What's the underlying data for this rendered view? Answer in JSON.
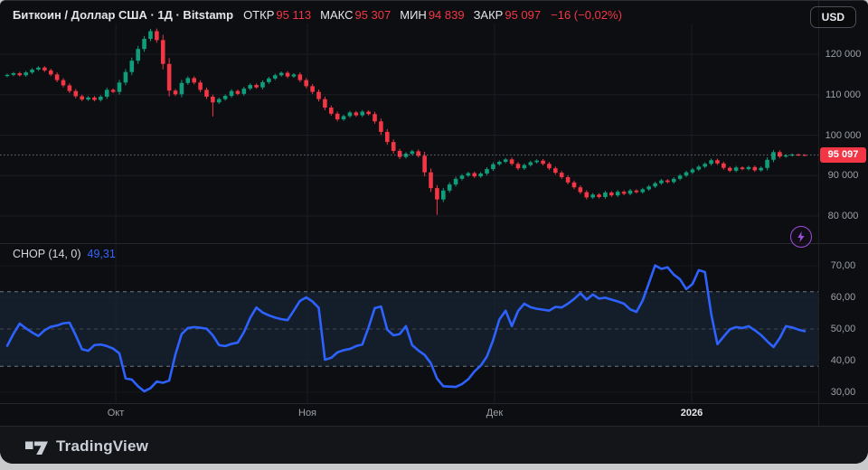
{
  "header": {
    "symbol_title": "Биткоин / Доллар США · 1Д · Bitstamp",
    "ohlc": [
      {
        "label": "ОТКР",
        "value": "95 113"
      },
      {
        "label": "МАКС",
        "value": "95 307"
      },
      {
        "label": "МИН",
        "value": "94 839"
      },
      {
        "label": "ЗАКР",
        "value": "95 097"
      }
    ],
    "change": "−16 (−0,02%)",
    "currency_button": "USD"
  },
  "indicator": {
    "label": "CHOP (14, 0)",
    "value": "49,31"
  },
  "branding": {
    "logo_text": "TradingView"
  },
  "colors": {
    "up": "#0f9e7b",
    "down": "#f23645",
    "chop_line": "#2d62ff",
    "badge_bg": "#f23645",
    "accent_purple": "#9d4edd",
    "band_fill": "#182634"
  },
  "chart_data": [
    {
      "type": "candlestick",
      "name": "Биткоин / Доллар США · 1Д · Bitstamp",
      "unit": "thousand USD",
      "first_open": 114.6,
      "closes": [
        114.9,
        115.3,
        114.8,
        115.5,
        116.2,
        116.7,
        116.0,
        115.0,
        113.6,
        112.3,
        110.9,
        109.6,
        108.8,
        109.3,
        108.7,
        109.5,
        111.2,
        110.7,
        113.0,
        115.6,
        118.4,
        121.3,
        123.8,
        125.7,
        123.5,
        117.6,
        111.0,
        110.1,
        112.9,
        114.1,
        113.0,
        111.2,
        109.5,
        108.1,
        108.9,
        109.7,
        110.9,
        110.2,
        111.5,
        112.4,
        111.8,
        113.1,
        114.0,
        114.8,
        115.4,
        114.5,
        115.0,
        113.6,
        112.1,
        110.7,
        108.9,
        106.8,
        105.3,
        103.9,
        104.7,
        105.6,
        104.9,
        105.8,
        105.2,
        103.4,
        100.8,
        98.3,
        96.1,
        94.6,
        95.4,
        96.0,
        94.9,
        90.8,
        86.9,
        84.1,
        86.3,
        87.8,
        89.2,
        90.0,
        90.6,
        89.8,
        90.5,
        91.6,
        92.8,
        93.4,
        94.0,
        92.9,
        91.8,
        92.6,
        93.3,
        93.7,
        92.9,
        91.8,
        90.7,
        89.6,
        88.3,
        87.1,
        85.9,
        84.6,
        85.3,
        84.7,
        85.8,
        85.1,
        86.0,
        85.5,
        86.3,
        85.9,
        86.6,
        87.3,
        88.1,
        88.8,
        88.4,
        89.2,
        90.0,
        90.8,
        91.5,
        92.2,
        92.9,
        93.8,
        93.0,
        91.9,
        91.2,
        92.0,
        91.6,
        92.1,
        91.3,
        91.9,
        93.9,
        95.8,
        94.7,
        95.0,
        95.2,
        95.1,
        95.097
      ],
      "wick_overrides": {
        "33": {
          "low": 104.6
        },
        "69": {
          "low": 80.3
        },
        "123": {
          "high": 96.3
        }
      },
      "last_candle": {
        "open": 95.113,
        "high": 95.307,
        "low": 94.839,
        "close": 95.097
      },
      "y_ticks": [
        {
          "text": "120 000",
          "value": 120000
        },
        {
          "text": "110 000",
          "value": 110000
        },
        {
          "text": "100 000",
          "value": 100000
        },
        {
          "text": "90 000",
          "value": 90000
        },
        {
          "text": "80 000",
          "value": 80000
        }
      ],
      "x_ticks": [
        {
          "text": "Окт",
          "index": 17.42
        },
        {
          "text": "Ноя",
          "index": 48.19
        },
        {
          "text": "Дек",
          "index": 78.23
        },
        {
          "text": "2026",
          "index": 109.87,
          "emphasis": true
        }
      ],
      "last_price": {
        "text": "95 097",
        "value": 95097
      },
      "ylim": [
        78,
        128
      ]
    },
    {
      "type": "line",
      "name": "CHOP (14, 0)",
      "values": [
        44.7,
        48.5,
        51.7,
        50.2,
        48.9,
        47.8,
        49.6,
        50.7,
        51.1,
        51.8,
        52.0,
        48.0,
        43.6,
        43.1,
        44.9,
        45.1,
        44.6,
        43.8,
        42.3,
        34.4,
        34.0,
        31.9,
        30.3,
        31.3,
        33.4,
        33.0,
        33.7,
        42.0,
        48.4,
        50.3,
        50.6,
        50.4,
        50.1,
        48.0,
        44.9,
        44.6,
        45.3,
        45.7,
        49.0,
        53.5,
        56.8,
        55.2,
        54.3,
        53.6,
        53.1,
        52.8,
        55.8,
        58.9,
        60.0,
        58.7,
        56.7,
        40.3,
        40.9,
        42.6,
        43.3,
        43.7,
        44.6,
        45.1,
        50.5,
        56.6,
        57.1,
        49.8,
        48.0,
        48.4,
        50.9,
        44.9,
        43.2,
        41.8,
        39.2,
        34.3,
        31.9,
        31.8,
        31.7,
        32.6,
        34.1,
        36.6,
        38.4,
        41.3,
        46.5,
        53.0,
        55.8,
        50.9,
        55.7,
        58.0,
        56.9,
        56.4,
        56.1,
        55.8,
        57.0,
        56.8,
        58.0,
        59.5,
        61.3,
        59.3,
        60.9,
        59.6,
        59.9,
        59.3,
        58.7,
        58.0,
        56.2,
        55.4,
        59.0,
        64.5,
        70.1,
        69.0,
        69.5,
        67.2,
        65.7,
        62.6,
        64.2,
        68.6,
        68.0,
        54.8,
        45.2,
        47.6,
        49.9,
        50.6,
        50.3,
        50.9,
        49.6,
        48.1,
        46.1,
        44.3,
        47.1,
        50.9,
        50.5,
        49.8,
        49.31
      ],
      "last_value": 49.31,
      "bands": {
        "upper": 61.8,
        "lower": 38.2,
        "mid": 50
      },
      "y_ticks": [
        {
          "text": "70,00",
          "value": 70
        },
        {
          "text": "60,00",
          "value": 60
        },
        {
          "text": "50,00",
          "value": 50
        },
        {
          "text": "40,00",
          "value": 40
        },
        {
          "text": "30,00",
          "value": 30
        }
      ],
      "ylim": [
        27,
        75
      ]
    }
  ]
}
